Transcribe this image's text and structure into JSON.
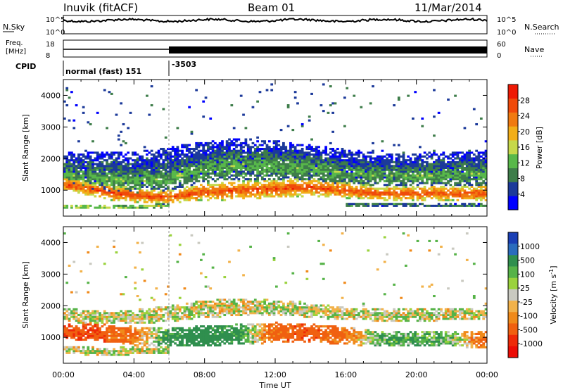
{
  "header": {
    "station": "Inuvik (fitACF)",
    "beam": "Beam 01",
    "date": "11/Mar/2014"
  },
  "noise_panel": {
    "left_label": "N.Sky",
    "right_label": "N.Search",
    "left_ticks": [
      "10^5",
      "10^0"
    ],
    "right_ticks": [
      "10^5",
      "10^0"
    ]
  },
  "freq_panel": {
    "left_label_1": "Freq.",
    "left_label_2": "[MHz]",
    "right_label": "Nave",
    "left_ticks": [
      "18",
      "8"
    ],
    "right_ticks": [
      "60",
      "0"
    ]
  },
  "cpid": {
    "label": "CPID",
    "segments": [
      {
        "text": "normal (fast) 151",
        "start_hour": 0
      },
      {
        "text": "-3503",
        "start_hour": 6
      }
    ]
  },
  "chart_data": [
    {
      "type": "heatmap",
      "panel": "power",
      "ylabel": "Slant Range [km]",
      "xlim": [
        0,
        24
      ],
      "ylim": [
        180,
        4500
      ],
      "yticks": [
        1000,
        2000,
        3000,
        4000
      ],
      "colorbar": {
        "label": "Power [dB]",
        "ticks": [
          4,
          8,
          12,
          16,
          20,
          24,
          28
        ],
        "range": [
          0,
          32
        ],
        "colors": [
          "#0000ff",
          "#1c3a9a",
          "#3e7d4a",
          "#58b84a",
          "#c6d84a",
          "#f2ae18",
          "#f07a10",
          "#f04a0a",
          "#ee1a05"
        ]
      },
      "bands": [
        {
          "t": [
            0,
            1.5,
            3,
            5,
            6,
            8,
            10,
            12,
            14,
            16,
            18,
            20,
            22,
            24
          ],
          "center": [
            1200,
            1050,
            900,
            800,
            800,
            950,
            1000,
            1050,
            1100,
            1000,
            900,
            900,
            900,
            900
          ],
          "width": [
            400,
            450,
            500,
            450,
            400,
            550,
            600,
            600,
            550,
            500,
            450,
            450,
            450,
            500
          ],
          "level": 27
        },
        {
          "t": [
            0,
            2,
            4,
            6,
            8,
            10,
            12,
            14,
            16,
            18,
            20,
            22,
            24
          ],
          "center": [
            1500,
            1400,
            1300,
            1400,
            1700,
            1800,
            1750,
            1700,
            1550,
            1450,
            1450,
            1500,
            1500
          ],
          "width": [
            700,
            750,
            800,
            800,
            900,
            900,
            850,
            800,
            700,
            650,
            650,
            700,
            700
          ],
          "level": 12
        },
        {
          "t": [
            0,
            2,
            4,
            6,
            8,
            10,
            12,
            14,
            16,
            18,
            20,
            22,
            24
          ],
          "center": [
            1800,
            1750,
            1700,
            1850,
            2000,
            2100,
            2050,
            1950,
            1850,
            1750,
            1750,
            1800,
            1800
          ],
          "width": [
            900,
            950,
            1000,
            1050,
            1100,
            1100,
            1050,
            1000,
            900,
            850,
            850,
            900,
            900
          ],
          "level": 6
        },
        {
          "t": [
            0,
            1,
            2,
            3,
            4,
            5,
            6
          ],
          "center": [
            500,
            480,
            470,
            470,
            480,
            500,
            520
          ],
          "width": [
            140,
            140,
            130,
            130,
            130,
            130,
            130
          ],
          "level": 16
        },
        {
          "t": [
            16,
            17,
            18,
            19,
            20,
            21,
            22,
            23,
            24
          ],
          "center": [
            520,
            540,
            560,
            560,
            540,
            520,
            520,
            520,
            520
          ],
          "width": [
            140,
            140,
            130,
            130,
            130,
            130,
            130,
            130,
            140
          ],
          "level": 9
        }
      ],
      "sparse": {
        "range": [
          2000,
          4400
        ],
        "density": 0.02,
        "level": 6
      }
    },
    {
      "type": "heatmap",
      "panel": "velocity",
      "ylabel": "Slant Range [km]",
      "xlim": [
        0,
        24
      ],
      "ylim": [
        180,
        4500
      ],
      "yticks": [
        1000,
        2000,
        3000,
        4000
      ],
      "xticks": [
        "00:00",
        "04:00",
        "08:00",
        "12:00",
        "16:00",
        "20:00",
        "00:00"
      ],
      "xlabel": "Time UT",
      "colorbar": {
        "label": "Velocity [m s^-1]",
        "ticks": [
          "1000",
          "500",
          "100",
          "25",
          "-25",
          "-100",
          "-500",
          "-1000"
        ],
        "colors": [
          "#1a3fb5",
          "#2a6cbd",
          "#2f8f4e",
          "#56b348",
          "#9ad23c",
          "#c9c9c0",
          "#f2b24a",
          "#f08a1a",
          "#f06010",
          "#ee2a08",
          "#ec0c05"
        ]
      },
      "bands": [
        {
          "t": [
            0,
            2,
            4,
            6,
            8,
            10,
            12,
            14,
            16,
            18,
            20,
            22,
            24
          ],
          "center": [
            1200,
            1150,
            1050,
            1000,
            1050,
            1100,
            1150,
            1150,
            1050,
            950,
            950,
            950,
            950
          ],
          "width": [
            500,
            550,
            600,
            600,
            650,
            650,
            650,
            600,
            550,
            500,
            500,
            500,
            550
          ],
          "vel": [
            -300,
            -250,
            -150,
            150,
            200,
            150,
            -200,
            -250,
            -150,
            80,
            100,
            60,
            -200
          ]
        },
        {
          "t": [
            0,
            2,
            4,
            6,
            8,
            10,
            12,
            14,
            16,
            18,
            20,
            22,
            24
          ],
          "center": [
            1700,
            1650,
            1650,
            1750,
            1900,
            1950,
            1950,
            1850,
            1750,
            1700,
            1700,
            1750,
            1750
          ],
          "width": [
            400,
            450,
            450,
            500,
            550,
            550,
            500,
            450,
            400,
            400,
            400,
            400,
            400
          ],
          "vel": [
            0,
            0,
            10,
            0,
            0,
            -10,
            0,
            0,
            -10,
            0,
            0,
            0,
            0
          ]
        },
        {
          "t": [
            0,
            1,
            2,
            3,
            4,
            5,
            6
          ],
          "center": [
            600,
            580,
            560,
            560,
            580,
            600,
            620
          ],
          "width": [
            260,
            250,
            250,
            250,
            250,
            250,
            250
          ],
          "vel": [
            0,
            0,
            10,
            10,
            0,
            0,
            0
          ]
        }
      ],
      "sparse": {
        "range": [
          2000,
          4400
        ],
        "density": 0.015
      }
    }
  ]
}
